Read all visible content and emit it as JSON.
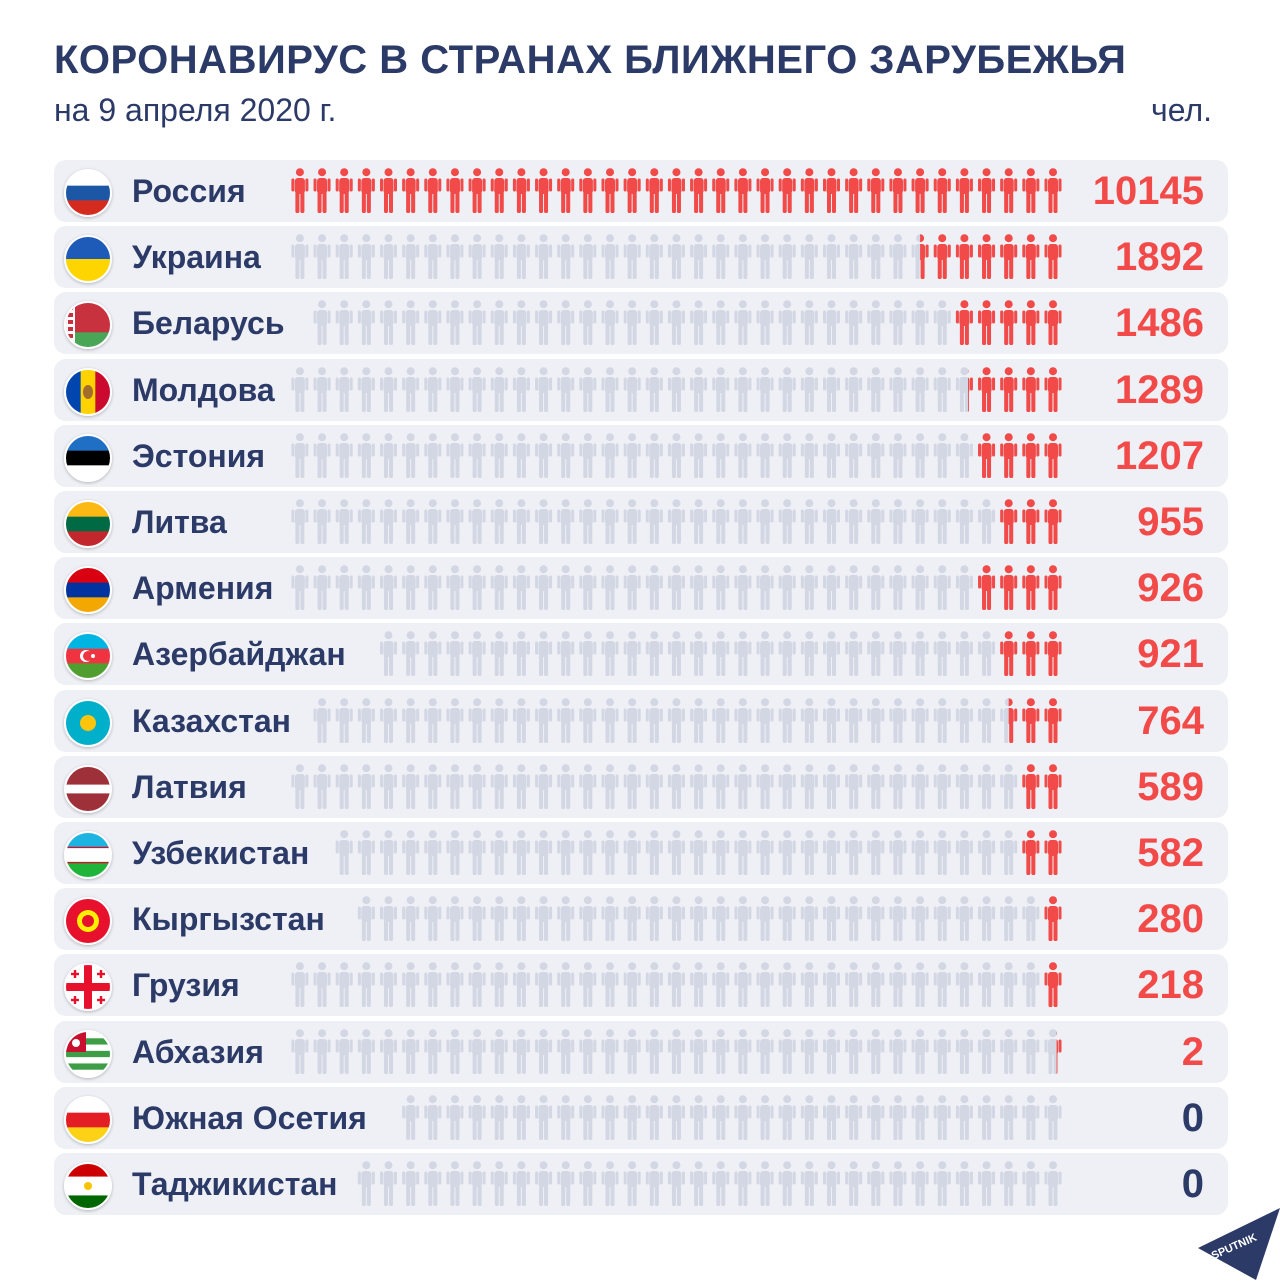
{
  "header": {
    "title": "КОРОНАВИРУС В СТРАНАХ БЛИЖНЕГО ЗАРУБЕЖЬЯ",
    "subtitle": "на 9 апреля 2020 г.",
    "unit": "чел."
  },
  "colors": {
    "accent": "#f24a48",
    "text": "#2c3a68",
    "icon_inactive": "#d3d7e4",
    "row_bg": "#eef0f5"
  },
  "chart_data": {
    "type": "pictogram-bar",
    "categories": [
      "Россия",
      "Украина",
      "Беларусь",
      "Молдова",
      "Эстония",
      "Литва",
      "Армения",
      "Азербайджан",
      "Казахстан",
      "Латвия",
      "Узбекистан",
      "Кыргызстан",
      "Грузия",
      "Абхазия",
      "Южная Осетия",
      "Таджикистан"
    ],
    "values": [
      10145,
      1892,
      1486,
      1289,
      1207,
      955,
      926,
      921,
      764,
      589,
      582,
      280,
      218,
      2,
      0,
      0
    ],
    "highlighted_icons": [
      35,
      6.5,
      5,
      4.3,
      4,
      3,
      4,
      3,
      2.5,
      2,
      2,
      1,
      1,
      0.3,
      0,
      0
    ],
    "rows": [
      {
        "country": "Россия",
        "value": "10145",
        "flag": "russia"
      },
      {
        "country": "Украина",
        "value": "1892",
        "flag": "ukraine"
      },
      {
        "country": "Беларусь",
        "value": "1486",
        "flag": "belarus"
      },
      {
        "country": "Молдова",
        "value": "1289",
        "flag": "moldova"
      },
      {
        "country": "Эстония",
        "value": "1207",
        "flag": "estonia"
      },
      {
        "country": "Литва",
        "value": "955",
        "flag": "lithuania"
      },
      {
        "country": "Армения",
        "value": "926",
        "flag": "armenia"
      },
      {
        "country": "Азербайджан",
        "value": "921",
        "flag": "azerbaijan"
      },
      {
        "country": "Казахстан",
        "value": "764",
        "flag": "kazakhstan"
      },
      {
        "country": "Латвия",
        "value": "589",
        "flag": "latvia"
      },
      {
        "country": "Узбекистан",
        "value": "582",
        "flag": "uzbekistan"
      },
      {
        "country": "Кыргызстан",
        "value": "280",
        "flag": "kyrgyzstan"
      },
      {
        "country": "Грузия",
        "value": "218",
        "flag": "georgia"
      },
      {
        "country": "Абхазия",
        "value": "2",
        "flag": "abkhazia"
      },
      {
        "country": "Южная Осетия",
        "value": "0",
        "flag": "south-ossetia"
      },
      {
        "country": "Таджикистан",
        "value": "0",
        "flag": "tajikistan"
      }
    ]
  },
  "logo": {
    "text": "SPUTNIK"
  }
}
